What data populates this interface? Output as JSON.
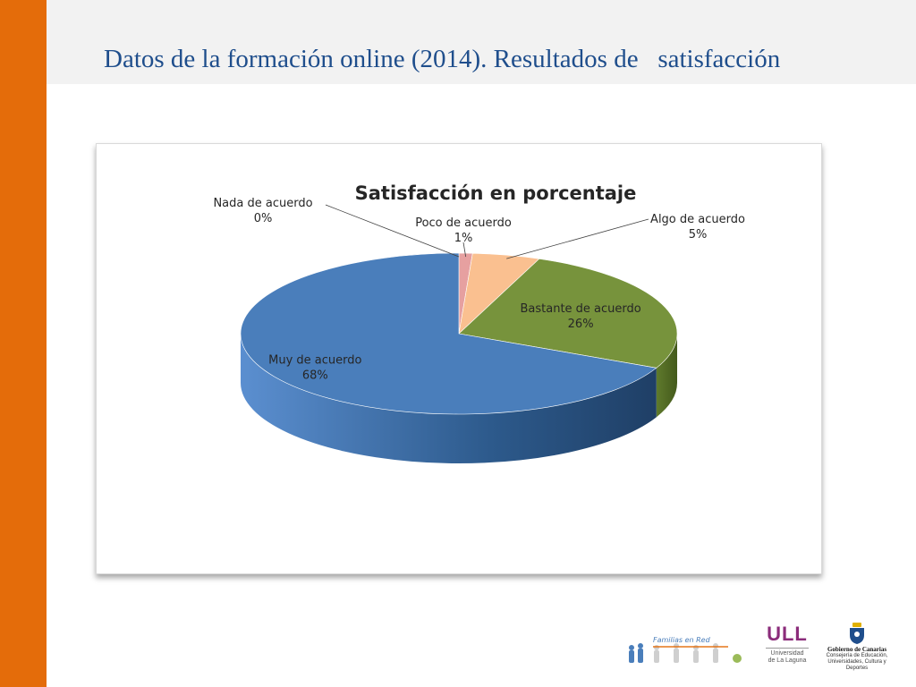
{
  "slide": {
    "title": "Datos de la formación online (2014). Resultados de   satisfacción"
  },
  "colors": {
    "left_bar": "#e46c0a",
    "title": "#1f4e8c",
    "muy": "#4a7ebb",
    "bastante": "#77933c",
    "algo": "#fac090",
    "poco": "#e6a0a0",
    "nada": "#c0504d"
  },
  "chart_data": {
    "type": "pie",
    "title": "Satisfacción en porcentaje",
    "three_d": true,
    "slices": [
      {
        "label": "Nada de acuerdo",
        "value": 0,
        "value_label": "0%",
        "color": "#c0504d"
      },
      {
        "label": "Poco de acuerdo",
        "value": 1,
        "value_label": "1%",
        "color": "#e6a0a0"
      },
      {
        "label": "Algo de acuerdo",
        "value": 5,
        "value_label": "5%",
        "color": "#fac090"
      },
      {
        "label": "Bastante de acuerdo",
        "value": 26,
        "value_label": "26%",
        "color": "#77933c"
      },
      {
        "label": "Muy de acuerdo",
        "value": 68,
        "value_label": "68%",
        "color": "#4a7ebb"
      }
    ]
  },
  "logos": {
    "familias": "Familias en Red",
    "ull_mark": "ULL",
    "ull_line1": "Universidad",
    "ull_line2": "de La Laguna",
    "gob_name": "Gobierno de Canarias",
    "gob_line1": "Consejería de Educación,",
    "gob_line2": "Universidades, Cultura y Deportes"
  }
}
